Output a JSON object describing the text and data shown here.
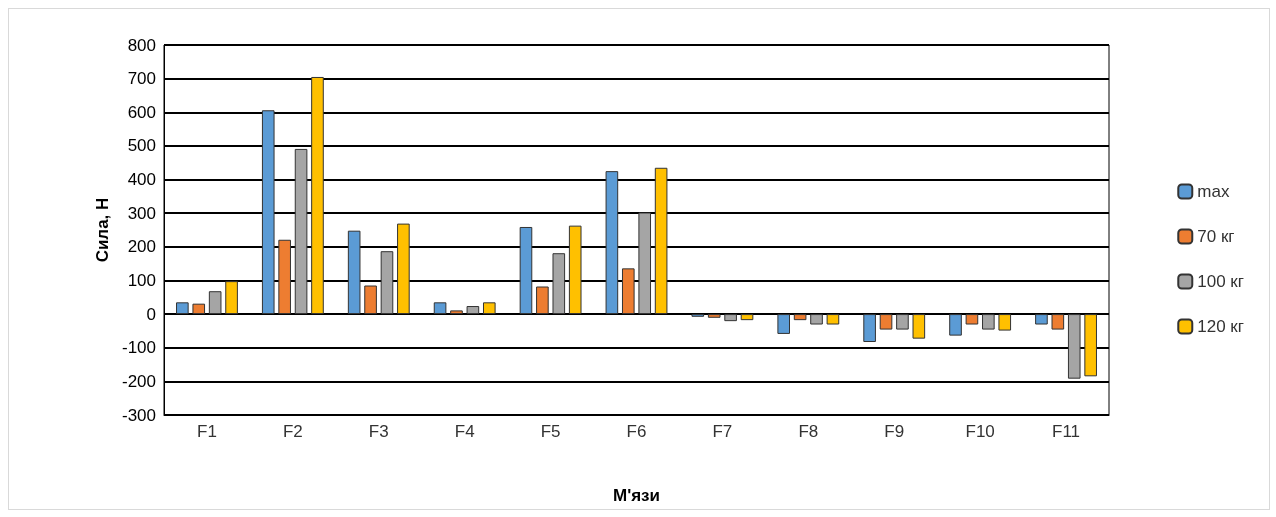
{
  "chart_data": {
    "type": "bar",
    "xlabel": "М'язи",
    "ylabel": "Сила, Н",
    "categories": [
      "F1",
      "F2",
      "F3",
      "F4",
      "F5",
      "F6",
      "F7",
      "F8",
      "F9",
      "F10",
      "F11"
    ],
    "series": [
      {
        "name": "max",
        "color": "#5b9bd5",
        "values": [
          35,
          606,
          248,
          35,
          259,
          425,
          -8,
          -59,
          -83,
          -64,
          -31
        ]
      },
      {
        "name": "70 кг",
        "color": "#ed7d31",
        "values": [
          31,
          221,
          85,
          11,
          82,
          136,
          -11,
          -18,
          -46,
          -31,
          -46
        ]
      },
      {
        "name": "100 кг",
        "color": "#a5a5a5",
        "values": [
          68,
          491,
          187,
          24,
          181,
          302,
          -21,
          -31,
          -46,
          -46,
          -192
        ]
      },
      {
        "name": "120 кг",
        "color": "#ffc000",
        "values": [
          98,
          705,
          269,
          35,
          263,
          435,
          -18,
          -31,
          -73,
          -49,
          -185
        ]
      }
    ],
    "ylim": [
      -300,
      800
    ],
    "yticks": [
      -300,
      -200,
      -100,
      0,
      100,
      200,
      300,
      400,
      500,
      600,
      700,
      800
    ],
    "grid": "y",
    "legend": "right"
  }
}
